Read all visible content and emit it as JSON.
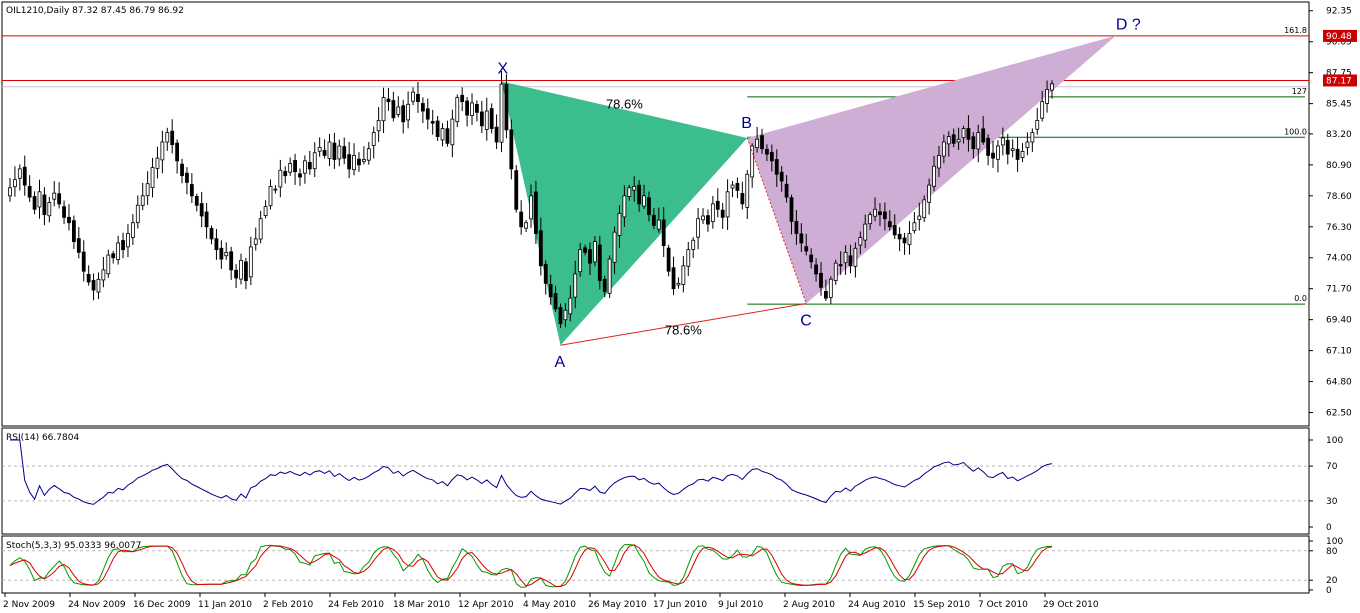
{
  "header": {
    "symbol_info": "OIL1210,Daily  87.32 87.45 86.79 86.92",
    "rsi_label": "RSI(14) 66.7804",
    "stoch_label": "Stoch(5,3,3) 95.0333 96.0077"
  },
  "chart_data": {
    "type": "candlestick",
    "price_axis": {
      "ticks": [
        "92.35",
        "90.05",
        "87.75",
        "85.45",
        "83.20",
        "80.90",
        "78.60",
        "76.30",
        "74.00",
        "71.70",
        "69.40",
        "67.10",
        "64.80",
        "62.50"
      ],
      "range": [
        61.5,
        93.0
      ]
    },
    "price_tags": [
      {
        "label": "90.48",
        "value": 90.48,
        "color": "#cc0000"
      },
      {
        "label": "87.17",
        "value": 87.17,
        "color": "#cc0000"
      }
    ],
    "horizontal_lines": [
      {
        "value": 90.48,
        "color": "#dd0000"
      },
      {
        "value": 87.17,
        "color": "#dd0000"
      },
      {
        "value": 86.7,
        "color": "#c8c8c8"
      }
    ],
    "fib_levels": [
      {
        "label": "161.8",
        "value": 90.48,
        "color": "#dd0000"
      },
      {
        "label": "127",
        "value": 85.95,
        "color": "#006400"
      },
      {
        "label": "100.0",
        "value": 82.95,
        "color": "#006400"
      },
      {
        "label": "0.0",
        "value": 70.55,
        "color": "#006400"
      }
    ],
    "pattern": {
      "points": [
        {
          "label": "X",
          "date_index": 100,
          "value": 87.1
        },
        {
          "label": "A",
          "date_index": 112,
          "value": 67.5
        },
        {
          "label": "B",
          "date_index": 150,
          "value": 82.9
        },
        {
          "label": "C",
          "date_index": 162,
          "value": 70.6
        },
        {
          "label": "D ?",
          "date_index": 225,
          "value": 90.5
        }
      ],
      "ratios": [
        "78.6%",
        "78.6%"
      ]
    },
    "x_ticks": [
      "2 Nov 2009",
      "24 Nov 2009",
      "16 Dec 2009",
      "11 Jan 2010",
      "2 Feb 2010",
      "24 Feb 2010",
      "18 Mar 2010",
      "12 Apr 2010",
      "4 May 2010",
      "26 May 2010",
      "17 Jun 2010",
      "9 Jul 2010",
      "2 Aug 2010",
      "24 Aug 2010",
      "15 Sep 2010",
      "7 Oct 2010",
      "29 Oct 2010"
    ],
    "closes": [
      79.2,
      79.8,
      80.6,
      79.4,
      78.5,
      77.6,
      78.9,
      77.2,
      78.1,
      78.8,
      78.0,
      77.0,
      76.6,
      75.2,
      74.4,
      73.0,
      72.2,
      71.6,
      72.4,
      73.1,
      74.2,
      74.0,
      75.1,
      74.6,
      75.8,
      76.6,
      77.9,
      78.6,
      79.5,
      80.7,
      81.4,
      82.6,
      83.3,
      82.4,
      81.2,
      80.1,
      79.6,
      78.6,
      77.9,
      77.1,
      76.3,
      75.4,
      74.6,
      73.9,
      74.4,
      73.1,
      72.5,
      73.8,
      72.3,
      74.8,
      75.4,
      76.9,
      77.8,
      79.3,
      79.1,
      80.5,
      80.1,
      81.0,
      80.4,
      80.0,
      81.2,
      80.6,
      81.8,
      82.2,
      81.6,
      82.6,
      81.3,
      82.3,
      81.4,
      80.6,
      81.6,
      80.9,
      81.3,
      82.1,
      83.3,
      84.2,
      85.9,
      85.6,
      84.4,
      85.2,
      84.1,
      85.4,
      86.3,
      85.6,
      84.9,
      84.3,
      84.0,
      83.0,
      83.6,
      82.5,
      84.3,
      85.9,
      85.6,
      84.6,
      85.5,
      84.8,
      83.8,
      84.9,
      83.6,
      82.6,
      86.9,
      83.5,
      80.6,
      77.6,
      76.3,
      76.6,
      78.6,
      75.8,
      73.4,
      72.1,
      71.1,
      70.2,
      69.1,
      70.1,
      71.0,
      72.8,
      74.6,
      74.4,
      73.6,
      75.2,
      72.3,
      71.5,
      73.9,
      75.9,
      77.3,
      78.6,
      79.2,
      79.3,
      78.0,
      78.6,
      77.2,
      76.4,
      76.8,
      74.9,
      73.0,
      71.7,
      72.1,
      73.4,
      74.6,
      75.3,
      76.9,
      77.1,
      76.5,
      78.0,
      77.6,
      77.0,
      78.9,
      79.4,
      79.0,
      78.0,
      80.2,
      82.3,
      82.8,
      82.1,
      81.7,
      81.2,
      80.2,
      79.7,
      78.5,
      76.7,
      75.8,
      75.1,
      74.5,
      73.7,
      72.8,
      71.8,
      71.0,
      72.4,
      73.6,
      73.4,
      74.4,
      73.4,
      74.7,
      75.5,
      76.5,
      77.2,
      77.6,
      77.2,
      76.9,
      76.3,
      75.7,
      75.4,
      75.1,
      75.8,
      76.6,
      77.1,
      78.3,
      79.4,
      80.8,
      81.6,
      82.6,
      83.0,
      82.5,
      82.8,
      83.6,
      82.8,
      82.1,
      83.3,
      82.6,
      81.6,
      81.4,
      82.3,
      82.9,
      81.7,
      82.1,
      81.3,
      81.9,
      82.6,
      83.3,
      84.2,
      85.6,
      86.5,
      86.92
    ],
    "rsi": {
      "axis_ticks": [
        "100",
        "70",
        "30",
        "0"
      ],
      "levels": [
        70,
        30
      ],
      "last": 66.7804
    },
    "stoch": {
      "axis_ticks": [
        "100",
        "80",
        "20",
        "0"
      ],
      "levels": [
        80,
        20
      ],
      "main_last": 95.0333,
      "signal_last": 96.0077
    }
  },
  "colors": {
    "xab_fill": "#3cbd8e",
    "bcd_fill": "#cfaed6",
    "pattern_edge": "#e02020",
    "candle_up": "#ffffff",
    "candle_down": "#000000",
    "rsi_line": "#00008b",
    "stoch_main": "#009900",
    "stoch_signal": "#dd0000"
  }
}
